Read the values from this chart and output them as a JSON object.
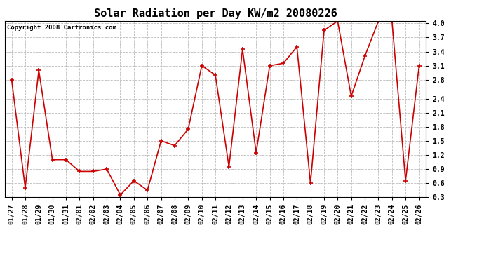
{
  "title": "Solar Radiation per Day KW/m2 20080226",
  "copyright_text": "Copyright 2008 Cartronics.com",
  "dates": [
    "01/27",
    "01/28",
    "01/29",
    "01/30",
    "01/31",
    "02/01",
    "02/02",
    "02/03",
    "02/04",
    "02/05",
    "02/06",
    "02/07",
    "02/08",
    "02/09",
    "02/10",
    "02/11",
    "02/12",
    "02/13",
    "02/14",
    "02/15",
    "02/16",
    "02/17",
    "02/18",
    "02/19",
    "02/20",
    "02/21",
    "02/22",
    "02/23",
    "02/24",
    "02/25",
    "02/26"
  ],
  "values": [
    2.8,
    0.5,
    3.0,
    1.1,
    1.1,
    0.85,
    0.85,
    0.9,
    0.35,
    0.65,
    0.45,
    1.5,
    1.4,
    1.75,
    3.1,
    2.9,
    0.95,
    3.45,
    1.25,
    3.1,
    3.15,
    3.5,
    0.6,
    3.85,
    4.05,
    2.45,
    3.3,
    4.05,
    4.05,
    0.65,
    3.1
  ],
  "line_color": "#cc0000",
  "marker_color": "#cc0000",
  "bg_color": "#ffffff",
  "plot_bg_color": "#ffffff",
  "grid_color": "#bbbbbb",
  "ylim": [
    0.3,
    4.05
  ],
  "yticks": [
    0.3,
    0.6,
    0.9,
    1.2,
    1.5,
    1.8,
    2.1,
    2.4,
    2.8,
    3.1,
    3.4,
    3.7,
    4.0
  ],
  "title_fontsize": 11,
  "tick_fontsize": 7,
  "copyright_fontsize": 6.5
}
